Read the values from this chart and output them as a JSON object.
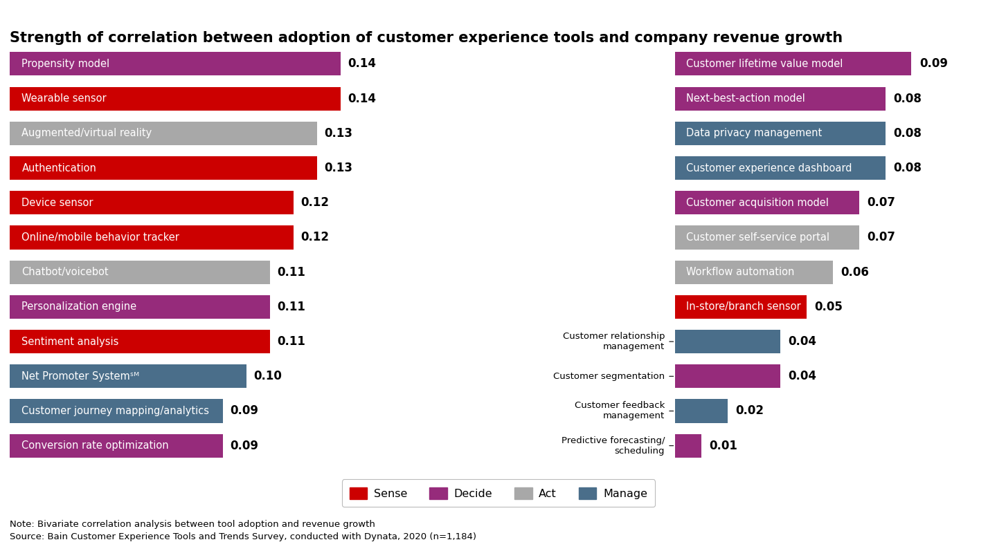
{
  "title": "Strength of correlation between adoption of customer experience tools and company revenue growth",
  "left_bars": [
    {
      "label": "Propensity model",
      "value": 0.14,
      "category": "Decide"
    },
    {
      "label": "Wearable sensor",
      "value": 0.14,
      "category": "Sense"
    },
    {
      "label": "Augmented/virtual reality",
      "value": 0.13,
      "category": "Act"
    },
    {
      "label": "Authentication",
      "value": 0.13,
      "category": "Sense"
    },
    {
      "label": "Device sensor",
      "value": 0.12,
      "category": "Sense"
    },
    {
      "label": "Online/mobile behavior tracker",
      "value": 0.12,
      "category": "Sense"
    },
    {
      "label": "Chatbot/voicebot",
      "value": 0.11,
      "category": "Act"
    },
    {
      "label": "Personalization engine",
      "value": 0.11,
      "category": "Decide"
    },
    {
      "label": "Sentiment analysis",
      "value": 0.11,
      "category": "Sense"
    },
    {
      "label": "Net Promoter Systemˢᴹ",
      "value": 0.1,
      "category": "Manage"
    },
    {
      "label": "Customer journey mapping/analytics",
      "value": 0.09,
      "category": "Manage"
    },
    {
      "label": "Conversion rate optimization",
      "value": 0.09,
      "category": "Decide"
    }
  ],
  "right_bars": [
    {
      "label": "Customer lifetime value model",
      "value": 0.09,
      "category": "Decide",
      "label_inside": true
    },
    {
      "label": "Next-best-action model",
      "value": 0.08,
      "category": "Decide",
      "label_inside": true
    },
    {
      "label": "Data privacy management",
      "value": 0.08,
      "category": "Manage",
      "label_inside": true
    },
    {
      "label": "Customer experience dashboard",
      "value": 0.08,
      "category": "Manage",
      "label_inside": true
    },
    {
      "label": "Customer acquisition model",
      "value": 0.07,
      "category": "Decide",
      "label_inside": true
    },
    {
      "label": "Customer self-service portal",
      "value": 0.07,
      "category": "Act",
      "label_inside": true
    },
    {
      "label": "Workflow automation",
      "value": 0.06,
      "category": "Act",
      "label_inside": true
    },
    {
      "label": "In-store/branch sensor",
      "value": 0.05,
      "category": "Sense",
      "label_inside": true
    },
    {
      "label": "Customer relationship\nmanagement",
      "value": 0.04,
      "category": "Manage",
      "label_inside": false
    },
    {
      "label": "Customer segmentation",
      "value": 0.04,
      "category": "Decide",
      "label_inside": false
    },
    {
      "label": "Customer feedback\nmanagement",
      "value": 0.02,
      "category": "Manage",
      "label_inside": false
    },
    {
      "label": "Predictive forecasting/\nscheduling",
      "value": 0.01,
      "category": "Decide",
      "label_inside": false
    }
  ],
  "colors": {
    "Sense": "#CC0000",
    "Decide": "#962B7B",
    "Act": "#A8A8A8",
    "Manage": "#4A6E8A"
  },
  "legend_labels": [
    "Sense",
    "Decide",
    "Act",
    "Manage"
  ],
  "note": "Note: Bivariate correlation analysis between tool adoption and revenue growth\nSource: Bain Customer Experience Tools and Trends Survey, conducted with Dynata, 2020 (n=1,184)",
  "background_color": "#FFFFFF",
  "title_fontsize": 15,
  "bar_label_fontsize": 10.5,
  "value_fontsize": 12,
  "note_fontsize": 9.5
}
